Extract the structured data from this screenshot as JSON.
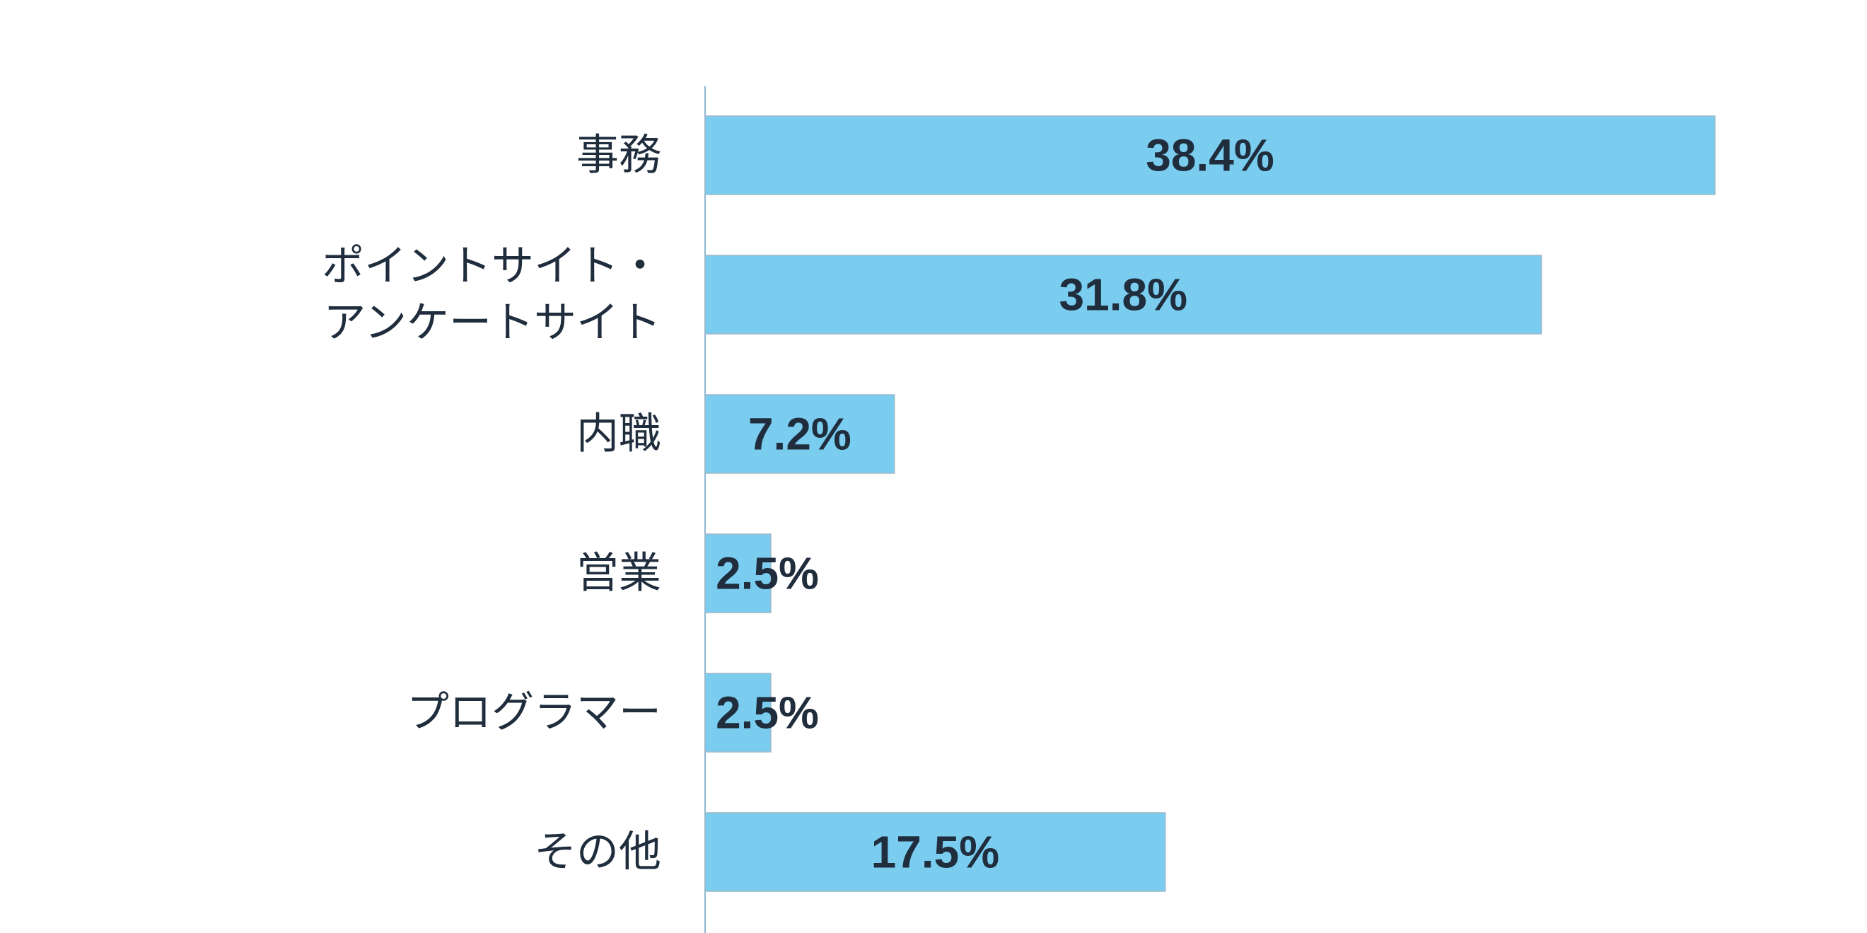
{
  "colors": {
    "bar": "#7acdef",
    "bar_stroke": "#9fb8c8",
    "axis": "#8fb7d2",
    "text": "#1f2d3d"
  },
  "chart_data": {
    "type": "bar",
    "orientation": "horizontal",
    "categories": [
      [
        "事務"
      ],
      [
        "ポイントサイト・",
        "アンケートサイト"
      ],
      [
        "内職"
      ],
      [
        "営業"
      ],
      [
        "プログラマー"
      ],
      [
        "その他"
      ]
    ],
    "values": [
      38.4,
      31.8,
      7.2,
      2.5,
      2.5,
      17.5
    ],
    "value_labels": [
      "38.4%",
      "31.8%",
      "7.2%",
      "2.5%",
      "2.5%",
      "17.5%"
    ],
    "title": "",
    "xlabel": "",
    "ylabel": "",
    "xlim": [
      0,
      38.4
    ],
    "unit": "%",
    "grid": false,
    "legend": "none"
  }
}
